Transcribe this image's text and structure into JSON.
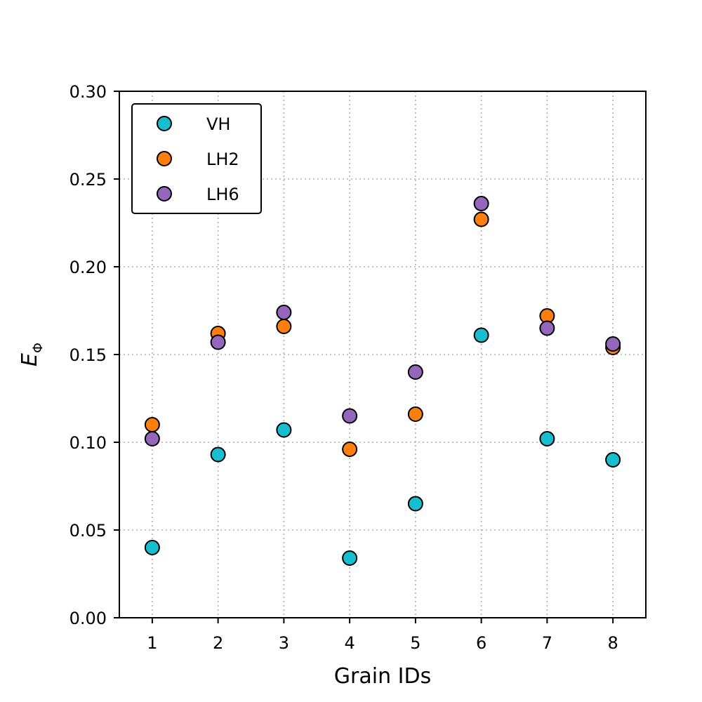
{
  "chart_data": {
    "type": "scatter",
    "title": "",
    "xlabel": "Grain IDs",
    "ylabel_main": "E",
    "ylabel_sub": "Φ",
    "xlim": [
      0.5,
      8.5
    ],
    "ylim": [
      0,
      0.3
    ],
    "x_ticks": [
      1,
      2,
      3,
      4,
      5,
      6,
      7,
      8
    ],
    "x_tick_labels": [
      "1",
      "2",
      "3",
      "4",
      "5",
      "6",
      "7",
      "8"
    ],
    "y_ticks": [
      0,
      0.05,
      0.1,
      0.15,
      0.2,
      0.25,
      0.3
    ],
    "y_tick_labels": [
      "0.00",
      "0.05",
      "0.10",
      "0.15",
      "0.20",
      "0.25",
      "0.30"
    ],
    "grid": true,
    "legend_position": "top-left",
    "x": [
      1,
      2,
      3,
      4,
      5,
      6,
      7,
      8
    ],
    "series": [
      {
        "name": "VH",
        "color": "#17becf",
        "values": [
          0.04,
          0.093,
          0.107,
          0.034,
          0.065,
          0.161,
          0.102,
          0.09
        ]
      },
      {
        "name": "LH2",
        "color": "#ff7f0e",
        "values": [
          0.11,
          0.162,
          0.166,
          0.096,
          0.116,
          0.227,
          0.172,
          0.154
        ]
      },
      {
        "name": "LH6",
        "color": "#9467bd",
        "values": [
          0.102,
          0.157,
          0.174,
          0.115,
          0.14,
          0.236,
          0.165,
          0.156
        ]
      }
    ]
  }
}
